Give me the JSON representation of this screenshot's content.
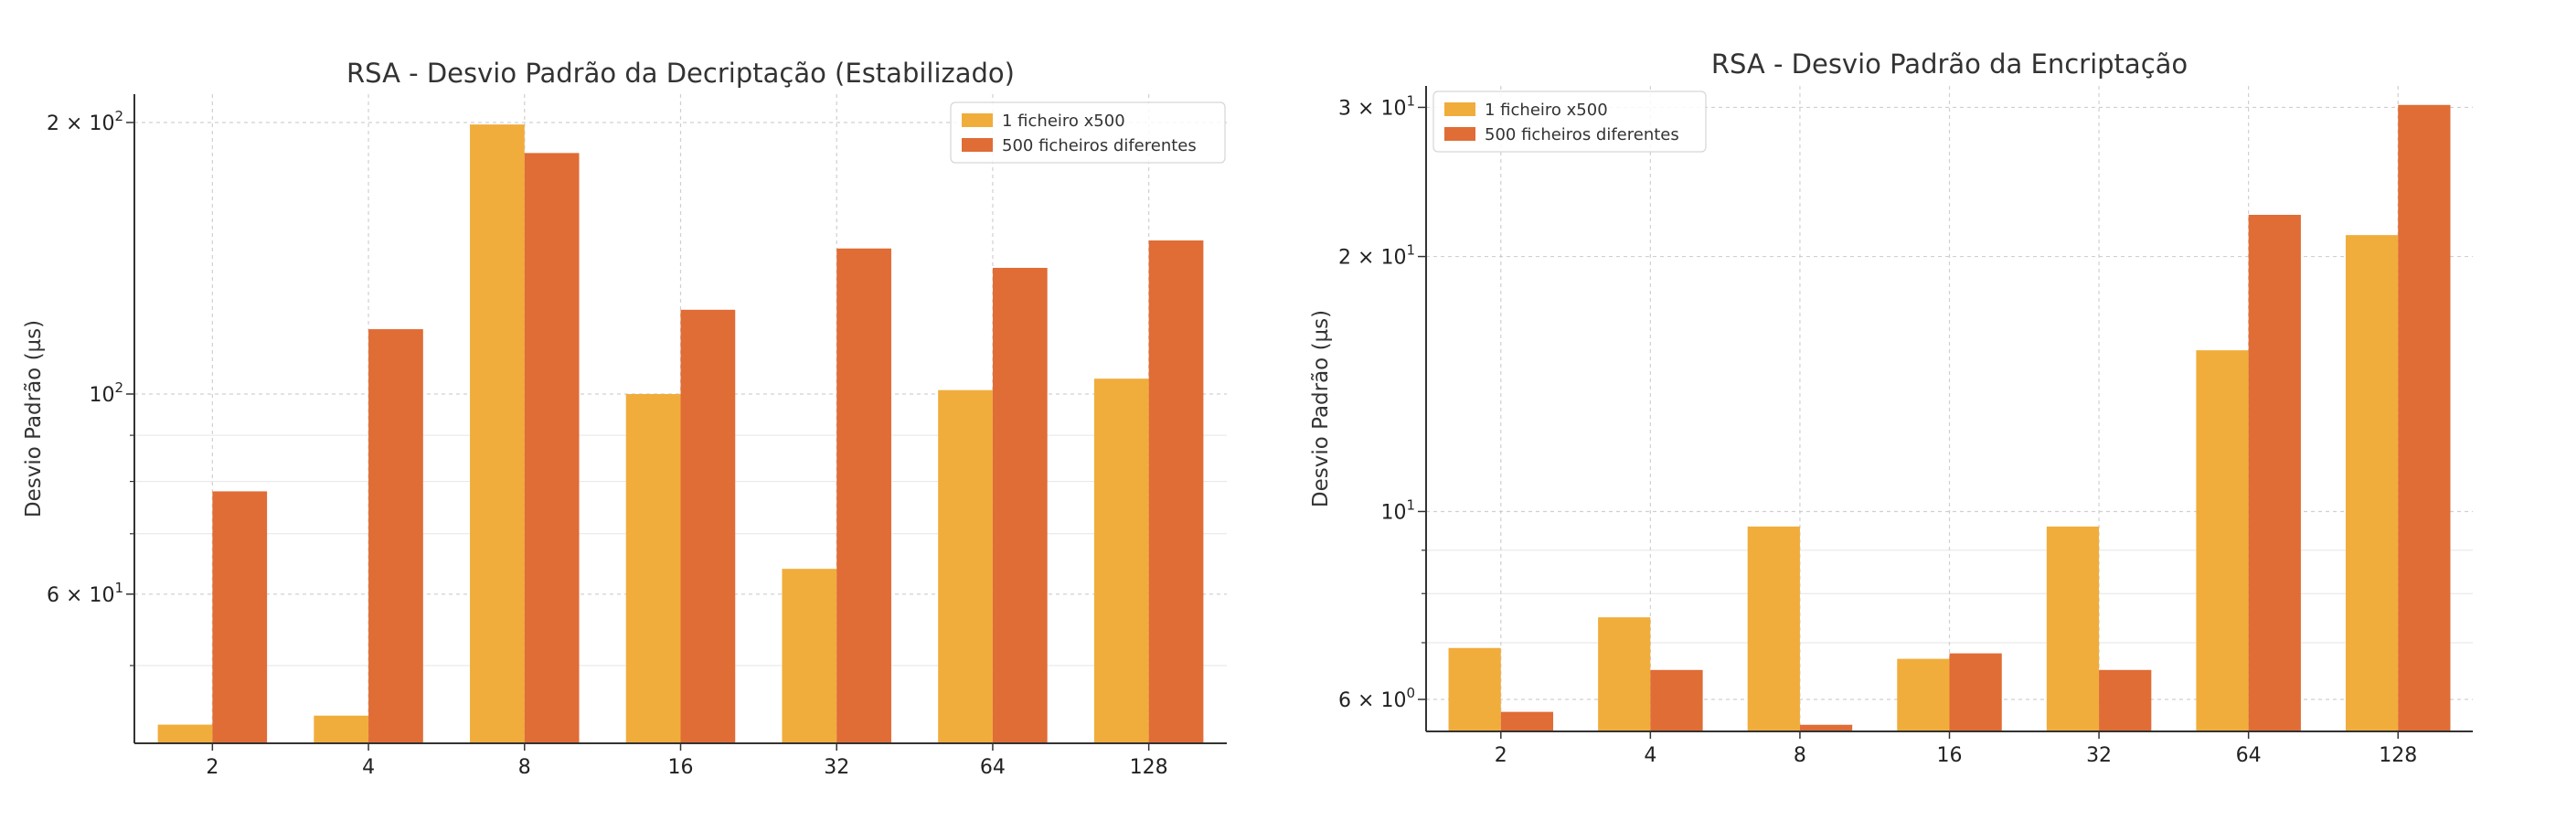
{
  "chart_data": [
    {
      "type": "bar",
      "title": "RSA - Desvio Padrão da Decriptação (Estabilizado)",
      "xlabel": "",
      "ylabel": "Desvio Padrão (µs)",
      "yscale": "log",
      "ylim": [
        41,
        215
      ],
      "categories": [
        "2",
        "4",
        "8",
        "16",
        "32",
        "64",
        "128"
      ],
      "yticks": [
        {
          "base": "6 × 10",
          "exp": "1",
          "value": 60
        },
        {
          "base": "10",
          "exp": "2",
          "value": 100
        },
        {
          "base": "2 × 10",
          "exp": "2",
          "value": 200
        }
      ],
      "yminor": [
        50,
        70,
        80,
        90,
        300
      ],
      "legend_position": "top-right",
      "series": [
        {
          "name": "1 ficheiro x500",
          "color": "#f0ad3c",
          "values": [
            43,
            44,
            199,
            100,
            64,
            101,
            104
          ]
        },
        {
          "name": "500 ficheiros diferentes",
          "color": "#e06c36",
          "values": [
            78,
            118,
            185,
            124,
            145,
            138,
            148
          ]
        }
      ]
    },
    {
      "type": "bar",
      "title": "RSA - Desvio Padrão da Encriptação",
      "xlabel": "",
      "ylabel": "Desvio Padrão (µs)",
      "yscale": "log",
      "ylim": [
        5.5,
        31.8
      ],
      "categories": [
        "2",
        "4",
        "8",
        "16",
        "32",
        "64",
        "128"
      ],
      "yticks": [
        {
          "base": "6 × 10",
          "exp": "0",
          "value": 6
        },
        {
          "base": "10",
          "exp": "1",
          "value": 10
        },
        {
          "base": "2 × 10",
          "exp": "1",
          "value": 20
        },
        {
          "base": "3 × 10",
          "exp": "1",
          "value": 30
        }
      ],
      "yminor": [
        7,
        8,
        9
      ],
      "legend_position": "top-left",
      "series": [
        {
          "name": "1 ficheiro x500",
          "color": "#f0ad3c",
          "values": [
            6.9,
            7.5,
            9.6,
            6.7,
            9.6,
            15.5,
            21.2
          ]
        },
        {
          "name": "500 ficheiros diferentes",
          "color": "#e06c36",
          "values": [
            5.8,
            6.5,
            5.6,
            6.8,
            6.5,
            22.4,
            30.2
          ]
        }
      ]
    }
  ]
}
